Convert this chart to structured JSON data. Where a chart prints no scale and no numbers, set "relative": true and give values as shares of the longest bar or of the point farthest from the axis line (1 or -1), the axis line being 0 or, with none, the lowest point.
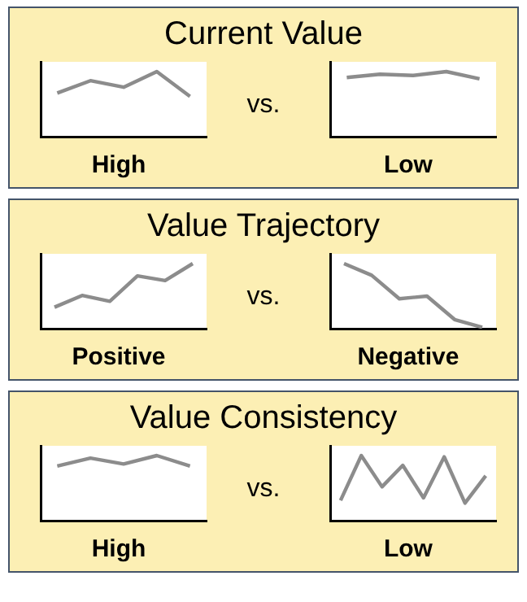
{
  "chart_data": [
    {
      "type": "line",
      "title": "Current Value",
      "annotations": [
        "vs."
      ],
      "xlabel": "High",
      "relative": true,
      "tick_labels": false,
      "color": "#8c8c8c",
      "categories": [
        null,
        null,
        null,
        null,
        null
      ],
      "values": [
        0.67,
        0.86,
        0.76,
        1,
        0.62
      ]
    },
    {
      "type": "line",
      "xlabel": "Low",
      "relative": true,
      "tick_labels": false,
      "color": "#8c8c8c",
      "categories": [
        null,
        null,
        null,
        null,
        null
      ],
      "values": [
        0.91,
        0.96,
        0.94,
        1,
        0.89
      ]
    },
    {
      "type": "line",
      "title": "Value Trajectory",
      "annotations": [
        "vs."
      ],
      "xlabel": "Positive",
      "relative": true,
      "tick_labels": false,
      "color": "#8c8c8c",
      "categories": [
        null,
        null,
        null,
        null,
        null,
        null
      ],
      "values": [
        0.33,
        0.51,
        0.42,
        0.81,
        0.74,
        1
      ]
    },
    {
      "type": "line",
      "xlabel": "Negative",
      "relative": true,
      "tick_labels": false,
      "color": "#8c8c8c",
      "categories": [
        null,
        null,
        null,
        null,
        null,
        null
      ],
      "values": [
        1,
        0.82,
        0.46,
        0.5,
        0.14,
        0.02
      ]
    },
    {
      "type": "line",
      "title": "Value Consistency",
      "annotations": [
        "vs."
      ],
      "xlabel": "High",
      "relative": true,
      "tick_labels": false,
      "color": "#8c8c8c",
      "categories": [
        null,
        null,
        null,
        null,
        null
      ],
      "values": [
        0.84,
        0.96,
        0.87,
        1,
        0.84
      ]
    },
    {
      "type": "line",
      "xlabel": "Low",
      "relative": true,
      "tick_labels": false,
      "color": "#8c8c8c",
      "categories": [
        null,
        null,
        null,
        null,
        null,
        null,
        null,
        null
      ],
      "values": [
        0.31,
        1,
        0.52,
        0.85,
        0.35,
        0.98,
        0.27,
        0.69
      ]
    }
  ]
}
